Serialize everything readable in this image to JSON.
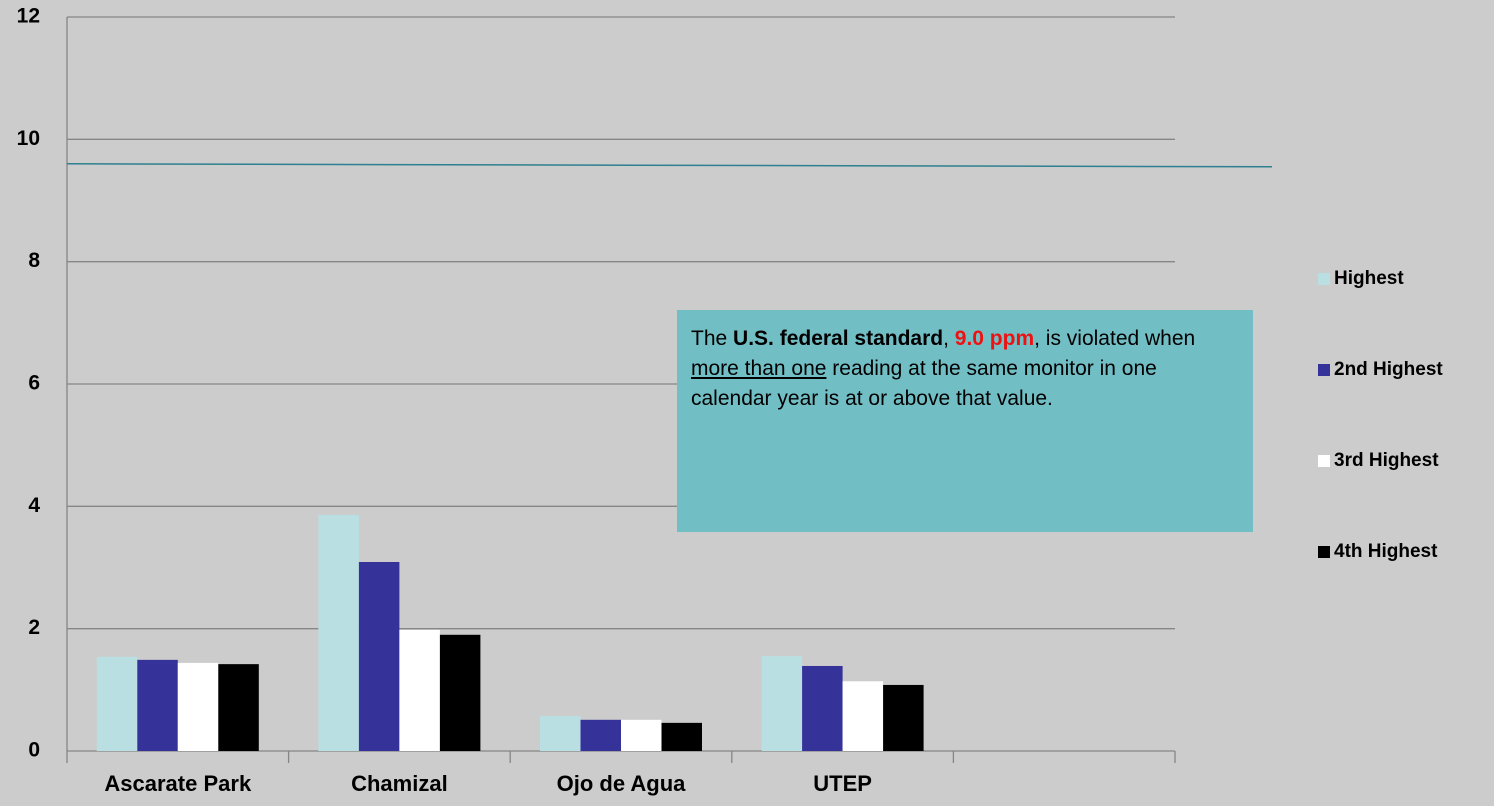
{
  "chart_data": {
    "type": "bar",
    "categories": [
      "Ascarate Park",
      "Chamizal",
      "Ojo de Agua",
      "UTEP",
      null
    ],
    "series": [
      {
        "name": "Highest",
        "color": "#b9dfe3",
        "values": [
          1.54,
          3.86,
          0.57,
          1.55,
          null
        ]
      },
      {
        "name": "2nd Highest",
        "color": "#353399",
        "values": [
          1.49,
          3.09,
          0.51,
          1.39,
          null
        ]
      },
      {
        "name": "3rd Highest",
        "color": "#ffffff",
        "values": [
          1.44,
          1.98,
          0.51,
          1.14,
          null
        ]
      },
      {
        "name": "4th Highest",
        "color": "#000000",
        "values": [
          1.42,
          1.9,
          0.46,
          1.08,
          null
        ]
      }
    ],
    "ylim": [
      0,
      12
    ],
    "yticks": [
      0,
      2,
      4,
      6,
      8,
      10,
      12
    ],
    "grid": true,
    "legend": "right",
    "reference_line": {
      "value": 9.6,
      "color": "#2e7f8f"
    },
    "annotation": [
      "The ",
      "U.S. federal standard",
      ", ",
      "9.0 ppm",
      ", is violated when ",
      "more than one",
      " reading at the same monitor in one calendar year is at or above that value."
    ]
  }
}
